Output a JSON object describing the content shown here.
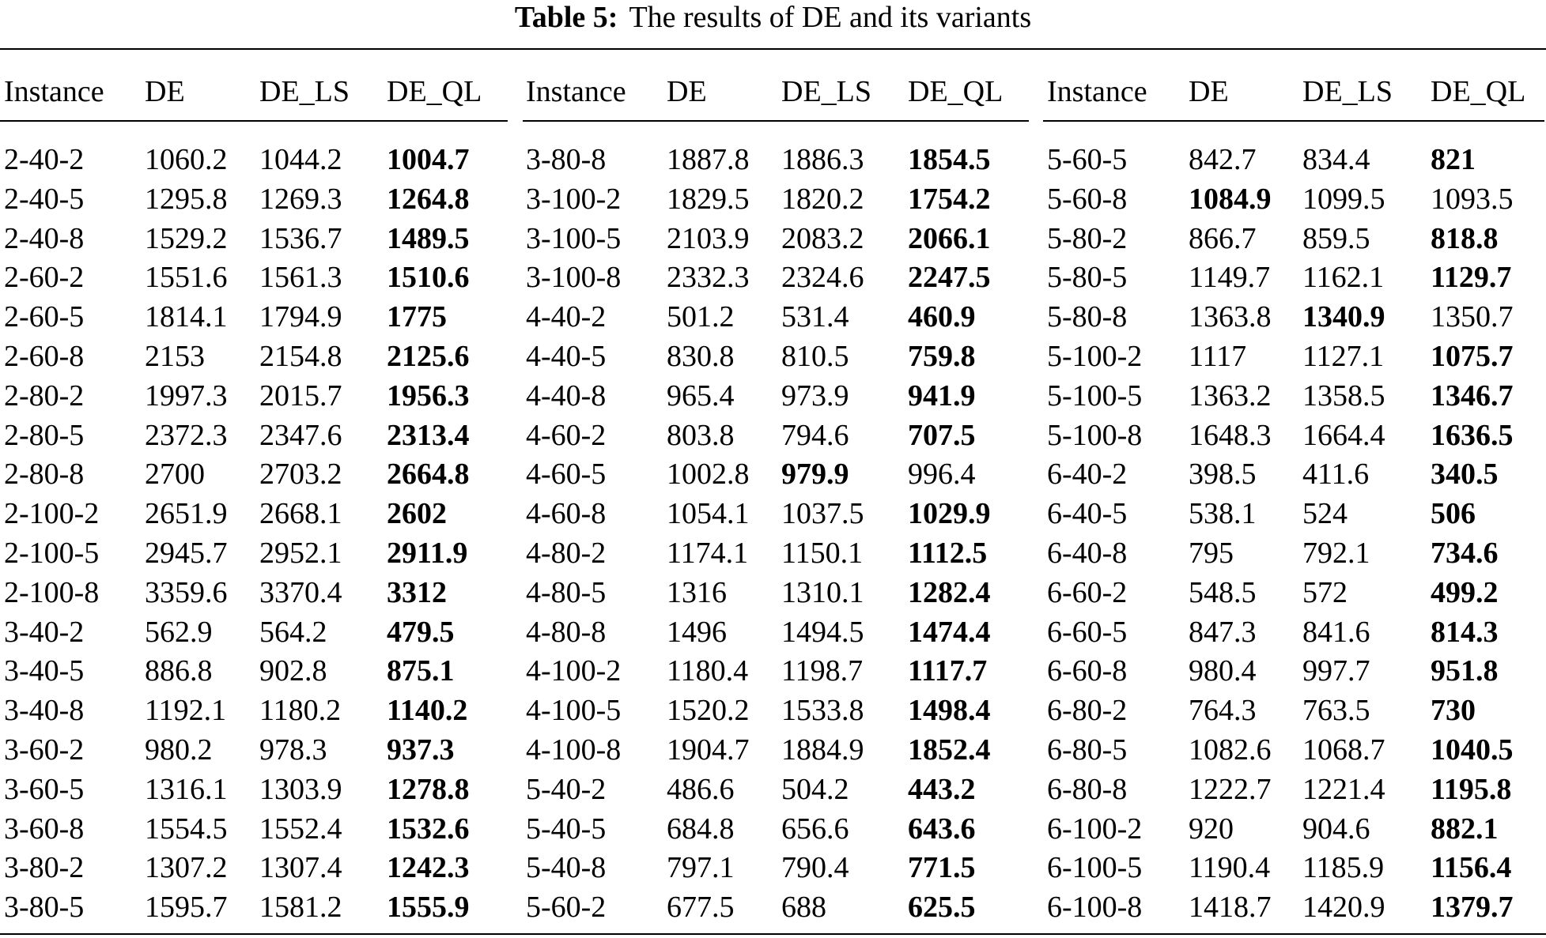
{
  "caption": {
    "label": "Table 5:",
    "text": "The results of DE and its variants"
  },
  "table": {
    "headers": [
      "Instance",
      "DE",
      "DE_LS",
      "DE_QL",
      "Instance",
      "DE",
      "DE_LS",
      "DE_QL",
      "Instance",
      "DE",
      "DE_LS",
      "DE_QL"
    ],
    "rows": [
      [
        "2-40-2",
        1060.2,
        1044.2,
        1004.7,
        "3-80-8",
        1887.8,
        1886.3,
        1854.5,
        "5-60-5",
        842.7,
        834.4,
        821
      ],
      [
        "2-40-5",
        1295.8,
        1269.3,
        1264.8,
        "3-100-2",
        1829.5,
        1820.2,
        1754.2,
        "5-60-8",
        1084.9,
        1099.5,
        1093.5
      ],
      [
        "2-40-8",
        1529.2,
        1536.7,
        1489.5,
        "3-100-5",
        2103.9,
        2083.2,
        2066.1,
        "5-80-2",
        866.7,
        859.5,
        818.8
      ],
      [
        "2-60-2",
        1551.6,
        1561.3,
        1510.6,
        "3-100-8",
        2332.3,
        2324.6,
        2247.5,
        "5-80-5",
        1149.7,
        1162.1,
        1129.7
      ],
      [
        "2-60-5",
        1814.1,
        1794.9,
        1775,
        "4-40-2",
        501.2,
        531.4,
        460.9,
        "5-80-8",
        1363.8,
        1340.9,
        1350.7
      ],
      [
        "2-60-8",
        2153,
        2154.8,
        2125.6,
        "4-40-5",
        830.8,
        810.5,
        759.8,
        "5-100-2",
        1117,
        1127.1,
        1075.7
      ],
      [
        "2-80-2",
        1997.3,
        2015.7,
        1956.3,
        "4-40-8",
        965.4,
        973.9,
        941.9,
        "5-100-5",
        1363.2,
        1358.5,
        1346.7
      ],
      [
        "2-80-5",
        2372.3,
        2347.6,
        2313.4,
        "4-60-2",
        803.8,
        794.6,
        707.5,
        "5-100-8",
        1648.3,
        1664.4,
        1636.5
      ],
      [
        "2-80-8",
        2700,
        2703.2,
        2664.8,
        "4-60-5",
        1002.8,
        979.9,
        996.4,
        "6-40-2",
        398.5,
        411.6,
        340.5
      ],
      [
        "2-100-2",
        2651.9,
        2668.1,
        2602,
        "4-60-8",
        1054.1,
        1037.5,
        1029.9,
        "6-40-5",
        538.1,
        524,
        506
      ],
      [
        "2-100-5",
        2945.7,
        2952.1,
        2911.9,
        "4-80-2",
        1174.1,
        1150.1,
        1112.5,
        "6-40-8",
        795,
        792.1,
        734.6
      ],
      [
        "2-100-8",
        3359.6,
        3370.4,
        3312,
        "4-80-5",
        1316,
        1310.1,
        1282.4,
        "6-60-2",
        548.5,
        572,
        499.2
      ],
      [
        "3-40-2",
        562.9,
        564.2,
        479.5,
        "4-80-8",
        1496,
        1494.5,
        1474.4,
        "6-60-5",
        847.3,
        841.6,
        814.3
      ],
      [
        "3-40-5",
        886.8,
        902.8,
        875.1,
        "4-100-2",
        1180.4,
        1198.7,
        1117.7,
        "6-60-8",
        980.4,
        997.7,
        951.8
      ],
      [
        "3-40-8",
        1192.1,
        1180.2,
        1140.2,
        "4-100-5",
        1520.2,
        1533.8,
        1498.4,
        "6-80-2",
        764.3,
        763.5,
        730
      ],
      [
        "3-60-2",
        980.2,
        978.3,
        937.3,
        "4-100-8",
        1904.7,
        1884.9,
        1852.4,
        "6-80-5",
        1082.6,
        1068.7,
        1040.5
      ],
      [
        "3-60-5",
        1316.1,
        1303.9,
        1278.8,
        "5-40-2",
        486.6,
        504.2,
        443.2,
        "6-80-8",
        1222.7,
        1221.4,
        1195.8
      ],
      [
        "3-60-8",
        1554.5,
        1552.4,
        1532.6,
        "5-40-5",
        684.8,
        656.6,
        643.6,
        "6-100-2",
        920,
        904.6,
        882.1
      ],
      [
        "3-80-2",
        1307.2,
        1307.4,
        1242.3,
        "5-40-8",
        797.1,
        790.4,
        771.5,
        "6-100-5",
        1190.4,
        1185.9,
        1156.4
      ],
      [
        "3-80-5",
        1595.7,
        1581.2,
        1555.9,
        "5-60-2",
        677.5,
        688,
        625.5,
        "6-100-8",
        1418.7,
        1420.9,
        1379.7
      ]
    ],
    "bold": [
      [
        3,
        7,
        11
      ],
      [
        3,
        7,
        9
      ],
      [
        3,
        7,
        11
      ],
      [
        3,
        7,
        11
      ],
      [
        3,
        7,
        10
      ],
      [
        3,
        7,
        11
      ],
      [
        3,
        7,
        11
      ],
      [
        3,
        7,
        11
      ],
      [
        3,
        6,
        11
      ],
      [
        3,
        7,
        11
      ],
      [
        3,
        7,
        11
      ],
      [
        3,
        7,
        11
      ],
      [
        3,
        7,
        11
      ],
      [
        3,
        7,
        11
      ],
      [
        3,
        7,
        11
      ],
      [
        3,
        7,
        11
      ],
      [
        3,
        7,
        11
      ],
      [
        3,
        7,
        11
      ],
      [
        3,
        7,
        11
      ],
      [
        3,
        7,
        11
      ]
    ]
  }
}
